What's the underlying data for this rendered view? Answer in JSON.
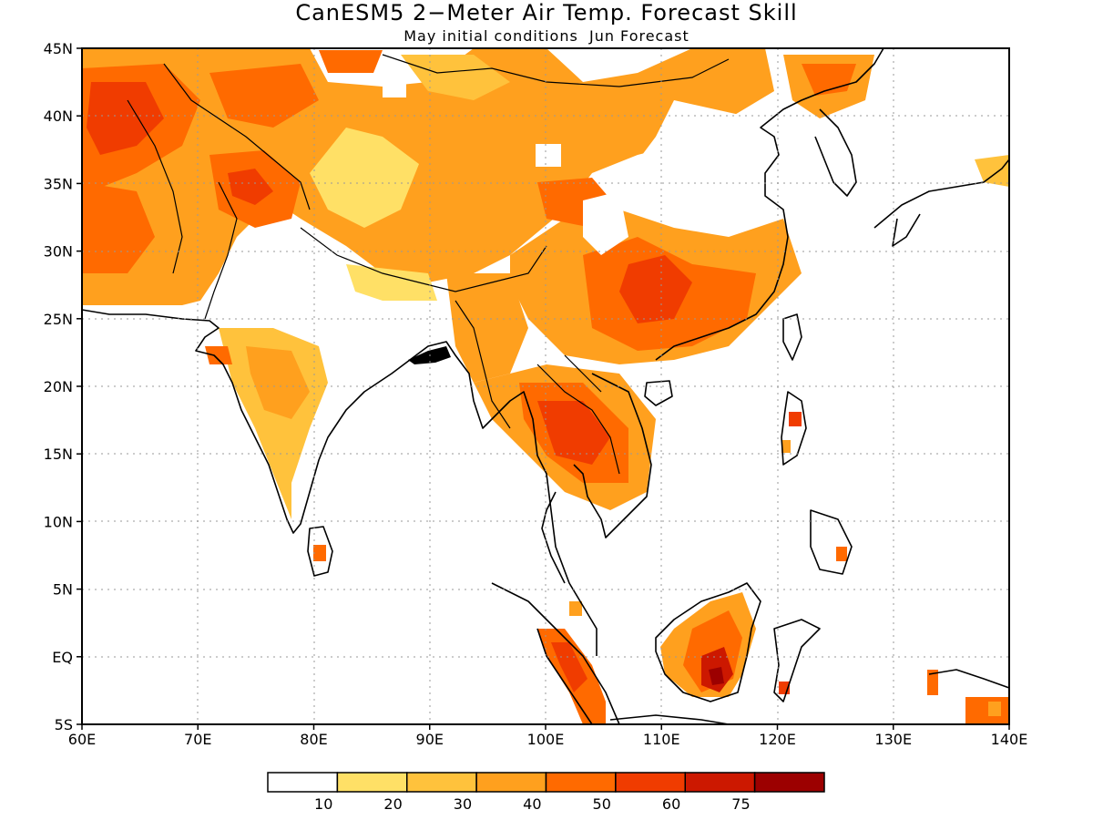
{
  "title": "CanESM5 2−Meter Air Temp. Forecast Skill",
  "subtitle": "May initial conditions  Jun Forecast",
  "map": {
    "lon_range": [
      60,
      140
    ],
    "lat_range": [
      -5,
      45
    ],
    "lon_ticks": [
      "60E",
      "70E",
      "80E",
      "90E",
      "100E",
      "110E",
      "120E",
      "130E",
      "140E"
    ],
    "lat_ticks": [
      "45N",
      "40N",
      "35N",
      "30N",
      "25N",
      "20N",
      "15N",
      "10N",
      "5N",
      "EQ",
      "5S"
    ],
    "grid": "dotted"
  },
  "colorbar": {
    "thresholds": [
      "10",
      "20",
      "30",
      "40",
      "50",
      "60",
      "75"
    ],
    "colors": [
      "#ffffff",
      "#ffe066",
      "#ffc23c",
      "#ffa01e",
      "#ff6a00",
      "#f03c00",
      "#cc1800",
      "#9c0000"
    ]
  }
}
